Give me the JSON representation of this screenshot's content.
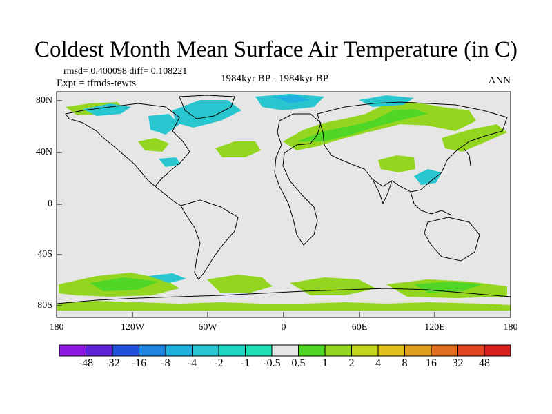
{
  "title": "Coldest Month Mean Surface Air Temperature (in C)",
  "stats": {
    "rmsd_label": "rmsd= 0.400098 diff= 0.108221"
  },
  "experiment": "Expt = tfmds-tewts",
  "period": "1984kyr BP - 1984kyr BP",
  "season": "ANN",
  "lat_labels": [
    "80N",
    "40N",
    "0",
    "40S",
    "80S"
  ],
  "lon_labels": [
    "180",
    "120W",
    "60W",
    "0",
    "60E",
    "120E",
    "180"
  ],
  "colorbar": {
    "labels": [
      "-48",
      "-32",
      "-16",
      "-8",
      "-4",
      "-2",
      "-1",
      "-0.5",
      "0.5",
      "1",
      "2",
      "4",
      "8",
      "16",
      "32",
      "48"
    ],
    "colors": [
      "#8d17e0",
      "#5f21d6",
      "#1f50d8",
      "#1f83e0",
      "#1fb0e0",
      "#29c6cf",
      "#1fd6c4",
      "#1fe0b4",
      "#e6e6e6",
      "#4fd626",
      "#94d61f",
      "#c4d61f",
      "#e0c21f",
      "#e09e1f",
      "#e0701f",
      "#e0451f",
      "#d61f1f"
    ]
  },
  "colors": {
    "land_bg": "#e6e6e6",
    "warm_light": "#94d61f",
    "warm": "#4fd626",
    "cool": "#29c6cf",
    "cool_dark": "#1fb0e0"
  }
}
